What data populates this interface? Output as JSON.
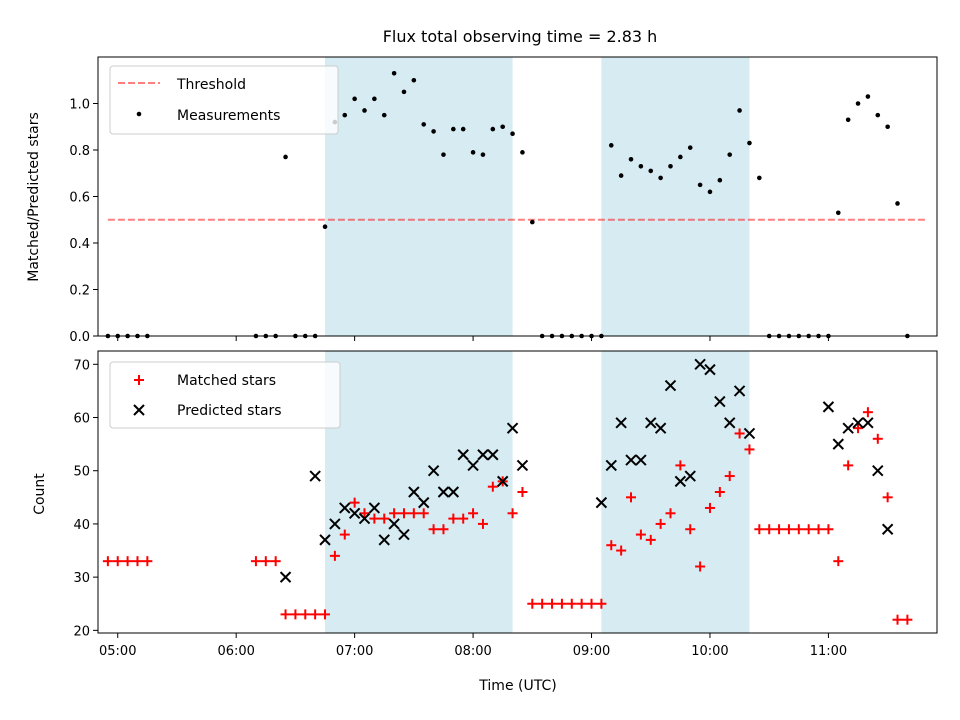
{
  "title": "Flux total observing time = 2.83 h",
  "colors": {
    "shade": "#add8e6",
    "threshold": "#ff0000",
    "measurement": "#000000",
    "matched": "#ff0000",
    "predicted": "#000000"
  },
  "chart_data": [
    {
      "type": "scatter",
      "panel": "top",
      "ylabel": "Matched/Predicted stars",
      "xlabel": "",
      "xlim": [
        "04:50",
        "11:55"
      ],
      "ylim": [
        0,
        1.2
      ],
      "yticks": [
        0.0,
        0.2,
        0.4,
        0.6,
        0.8,
        1.0
      ],
      "legend_position": "top-left",
      "shaded_intervals": [
        [
          "06:45",
          "08:20"
        ],
        [
          "09:05",
          "10:20"
        ]
      ],
      "threshold": {
        "name": "Threshold",
        "value": 0.5,
        "x": [
          "04:55",
          "11:50"
        ]
      },
      "series": [
        {
          "name": "Measurements",
          "marker": "dot",
          "points": [
            [
              "04:55",
              0.0
            ],
            [
              "05:00",
              0.0
            ],
            [
              "05:05",
              0.0
            ],
            [
              "05:10",
              0.0
            ],
            [
              "05:15",
              0.0
            ],
            [
              "06:10",
              0.0
            ],
            [
              "06:15",
              0.0
            ],
            [
              "06:20",
              0.0
            ],
            [
              "06:25",
              0.77
            ],
            [
              "06:30",
              0.0
            ],
            [
              "06:35",
              0.0
            ],
            [
              "06:40",
              0.0
            ],
            [
              "06:45",
              0.47
            ],
            [
              "06:50",
              0.92
            ],
            [
              "06:55",
              0.95
            ],
            [
              "07:00",
              1.02
            ],
            [
              "07:05",
              0.97
            ],
            [
              "07:10",
              1.02
            ],
            [
              "07:15",
              0.95
            ],
            [
              "07:20",
              1.13
            ],
            [
              "07:25",
              1.05
            ],
            [
              "07:30",
              1.1
            ],
            [
              "07:35",
              0.91
            ],
            [
              "07:40",
              0.88
            ],
            [
              "07:45",
              0.78
            ],
            [
              "07:50",
              0.89
            ],
            [
              "07:55",
              0.89
            ],
            [
              "08:00",
              0.79
            ],
            [
              "08:05",
              0.78
            ],
            [
              "08:10",
              0.89
            ],
            [
              "08:15",
              0.9
            ],
            [
              "08:20",
              0.87
            ],
            [
              "08:25",
              0.79
            ],
            [
              "08:30",
              0.49
            ],
            [
              "08:35",
              0.0
            ],
            [
              "08:40",
              0.0
            ],
            [
              "08:45",
              0.0
            ],
            [
              "08:50",
              0.0
            ],
            [
              "08:55",
              0.0
            ],
            [
              "09:00",
              0.0
            ],
            [
              "09:05",
              0.0
            ],
            [
              "09:10",
              0.82
            ],
            [
              "09:15",
              0.69
            ],
            [
              "09:20",
              0.76
            ],
            [
              "09:25",
              0.73
            ],
            [
              "09:30",
              0.71
            ],
            [
              "09:35",
              0.68
            ],
            [
              "09:40",
              0.73
            ],
            [
              "09:45",
              0.77
            ],
            [
              "09:50",
              0.81
            ],
            [
              "09:55",
              0.65
            ],
            [
              "10:00",
              0.62
            ],
            [
              "10:05",
              0.67
            ],
            [
              "10:10",
              0.78
            ],
            [
              "10:15",
              0.97
            ],
            [
              "10:20",
              0.83
            ],
            [
              "10:25",
              0.68
            ],
            [
              "10:30",
              0.0
            ],
            [
              "10:35",
              0.0
            ],
            [
              "10:40",
              0.0
            ],
            [
              "10:45",
              0.0
            ],
            [
              "10:50",
              0.0
            ],
            [
              "10:55",
              0.0
            ],
            [
              "11:00",
              0.0
            ],
            [
              "11:05",
              0.53
            ],
            [
              "11:10",
              0.93
            ],
            [
              "11:15",
              1.0
            ],
            [
              "11:20",
              1.03
            ],
            [
              "11:25",
              0.95
            ],
            [
              "11:30",
              0.9
            ],
            [
              "11:35",
              0.57
            ],
            [
              "11:40",
              0.0
            ]
          ]
        }
      ]
    },
    {
      "type": "scatter",
      "panel": "bottom",
      "xlabel": "Time (UTC)",
      "ylabel": "Count",
      "xlim": [
        "04:50",
        "11:55"
      ],
      "ylim": [
        19.5,
        72.5
      ],
      "xticks": [
        "05:00",
        "06:00",
        "07:00",
        "08:00",
        "09:00",
        "10:00",
        "11:00"
      ],
      "yticks": [
        20,
        30,
        40,
        50,
        60,
        70
      ],
      "legend_position": "top-left",
      "shaded_intervals": [
        [
          "06:45",
          "08:20"
        ],
        [
          "09:05",
          "10:20"
        ]
      ],
      "series": [
        {
          "name": "Matched stars",
          "marker": "plus",
          "points": [
            [
              "04:55",
              33
            ],
            [
              "05:00",
              33
            ],
            [
              "05:05",
              33
            ],
            [
              "05:10",
              33
            ],
            [
              "05:15",
              33
            ],
            [
              "06:10",
              33
            ],
            [
              "06:15",
              33
            ],
            [
              "06:20",
              33
            ],
            [
              "06:25",
              23
            ],
            [
              "06:30",
              23
            ],
            [
              "06:35",
              23
            ],
            [
              "06:40",
              23
            ],
            [
              "06:45",
              23
            ],
            [
              "06:50",
              34
            ],
            [
              "06:55",
              38
            ],
            [
              "07:00",
              44
            ],
            [
              "07:05",
              42
            ],
            [
              "07:10",
              41
            ],
            [
              "07:15",
              41
            ],
            [
              "07:20",
              42
            ],
            [
              "07:25",
              42
            ],
            [
              "07:30",
              42
            ],
            [
              "07:35",
              42
            ],
            [
              "07:40",
              39
            ],
            [
              "07:45",
              39
            ],
            [
              "07:50",
              41
            ],
            [
              "07:55",
              41
            ],
            [
              "08:00",
              42
            ],
            [
              "08:05",
              40
            ],
            [
              "08:10",
              47
            ],
            [
              "08:15",
              48
            ],
            [
              "08:20",
              42
            ],
            [
              "08:25",
              46
            ],
            [
              "08:30",
              25
            ],
            [
              "08:35",
              25
            ],
            [
              "08:40",
              25
            ],
            [
              "08:45",
              25
            ],
            [
              "08:50",
              25
            ],
            [
              "08:55",
              25
            ],
            [
              "09:00",
              25
            ],
            [
              "09:05",
              25
            ],
            [
              "09:10",
              36
            ],
            [
              "09:15",
              35
            ],
            [
              "09:20",
              45
            ],
            [
              "09:25",
              38
            ],
            [
              "09:30",
              37
            ],
            [
              "09:35",
              40
            ],
            [
              "09:40",
              42
            ],
            [
              "09:45",
              51
            ],
            [
              "09:50",
              39
            ],
            [
              "09:55",
              32
            ],
            [
              "10:00",
              43
            ],
            [
              "10:05",
              46
            ],
            [
              "10:10",
              49
            ],
            [
              "10:15",
              57
            ],
            [
              "10:20",
              54
            ],
            [
              "10:25",
              39
            ],
            [
              "10:30",
              39
            ],
            [
              "10:35",
              39
            ],
            [
              "10:40",
              39
            ],
            [
              "10:45",
              39
            ],
            [
              "10:50",
              39
            ],
            [
              "10:55",
              39
            ],
            [
              "11:00",
              39
            ],
            [
              "11:05",
              33
            ],
            [
              "11:10",
              51
            ],
            [
              "11:15",
              58
            ],
            [
              "11:20",
              61
            ],
            [
              "11:25",
              56
            ],
            [
              "11:30",
              45
            ],
            [
              "11:35",
              22
            ],
            [
              "11:40",
              22
            ]
          ]
        },
        {
          "name": "Predicted stars",
          "marker": "x",
          "points": [
            [
              "06:25",
              30
            ],
            [
              "06:40",
              49
            ],
            [
              "06:45",
              37
            ],
            [
              "06:50",
              40
            ],
            [
              "06:55",
              43
            ],
            [
              "07:00",
              42
            ],
            [
              "07:05",
              41
            ],
            [
              "07:10",
              43
            ],
            [
              "07:15",
              37
            ],
            [
              "07:20",
              40
            ],
            [
              "07:25",
              38
            ],
            [
              "07:30",
              46
            ],
            [
              "07:35",
              44
            ],
            [
              "07:40",
              50
            ],
            [
              "07:45",
              46
            ],
            [
              "07:50",
              46
            ],
            [
              "07:55",
              53
            ],
            [
              "08:00",
              51
            ],
            [
              "08:05",
              53
            ],
            [
              "08:10",
              53
            ],
            [
              "08:15",
              48
            ],
            [
              "08:20",
              58
            ],
            [
              "08:25",
              51
            ],
            [
              "09:05",
              44
            ],
            [
              "09:10",
              51
            ],
            [
              "09:15",
              59
            ],
            [
              "09:20",
              52
            ],
            [
              "09:25",
              52
            ],
            [
              "09:30",
              59
            ],
            [
              "09:35",
              58
            ],
            [
              "09:40",
              66
            ],
            [
              "09:45",
              48
            ],
            [
              "09:50",
              49
            ],
            [
              "09:55",
              70
            ],
            [
              "10:00",
              69
            ],
            [
              "10:05",
              63
            ],
            [
              "10:10",
              59
            ],
            [
              "10:15",
              65
            ],
            [
              "10:20",
              57
            ],
            [
              "11:00",
              62
            ],
            [
              "11:05",
              55
            ],
            [
              "11:10",
              58
            ],
            [
              "11:15",
              59
            ],
            [
              "11:20",
              59
            ],
            [
              "11:25",
              50
            ],
            [
              "11:30",
              39
            ]
          ]
        }
      ]
    }
  ]
}
